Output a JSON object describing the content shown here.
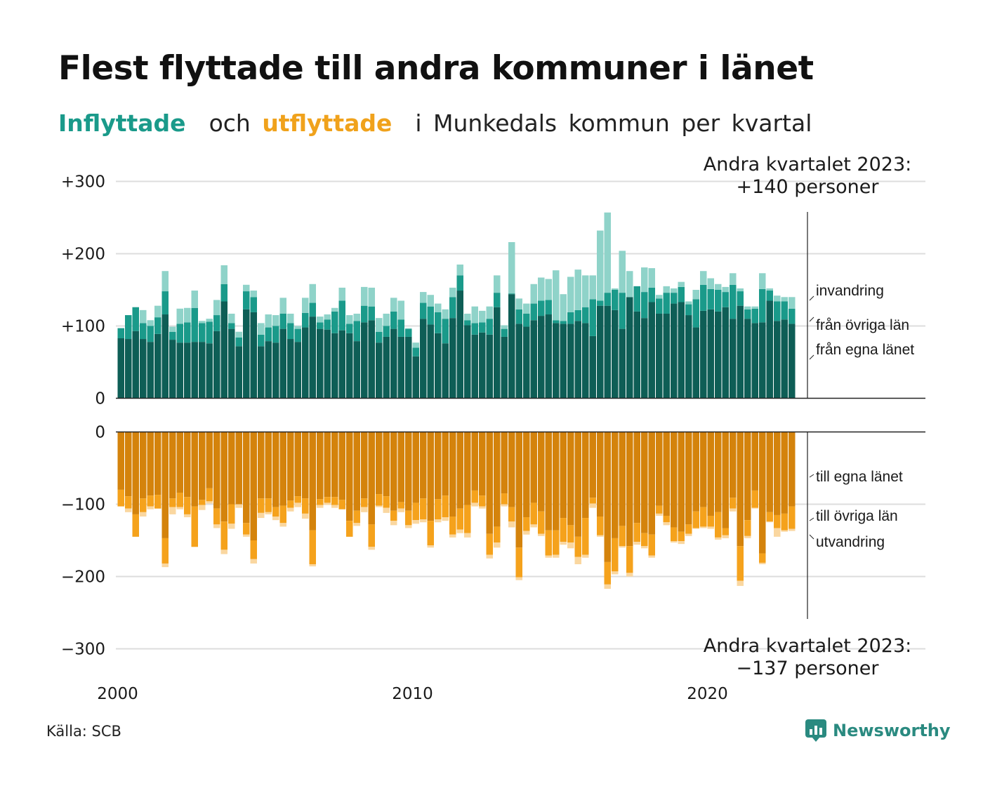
{
  "title": "Flest flyttade till andra kommuner i länet",
  "subtitle": {
    "in_word": "Inflyttade",
    "and_word": "och",
    "out_word": "utflyttade",
    "rest": "i Munkedals kommun per kvartal"
  },
  "annotations": {
    "top_line1": "Andra kvartalet 2023:",
    "top_line2": "+140 personer",
    "bottom_line1": "Andra kvartalet 2023:",
    "bottom_line2": "−137 personer"
  },
  "source": "Källa: SCB",
  "brand": "Newsworthy",
  "colors": {
    "in_own": "#0e5e56",
    "in_other": "#1a9a8a",
    "in_abroad": "#8fd3c9",
    "out_own": "#d4830c",
    "out_other": "#f5a21c",
    "out_abroad": "#fad7a0",
    "brand": "#2a8a80"
  },
  "chart_data": {
    "type": "bar",
    "stacked": true,
    "x_unit": "quarter",
    "first_quarter": "2000 Q1",
    "last_quarter": "2023 Q2",
    "x_ticks": [
      "2000",
      "2010",
      "2020"
    ],
    "y_ticks_in": [
      "+300",
      "+200",
      "+100",
      "0"
    ],
    "y_ticks_out": [
      "0",
      "−100",
      "−200",
      "−300"
    ],
    "ylim_in": [
      0,
      300
    ],
    "ylim_out": [
      -300,
      0
    ],
    "grid": true,
    "legend_in": [
      "invandring",
      "från övriga län",
      "från egna länet"
    ],
    "legend_out": [
      "till egna länet",
      "till övriga län",
      "utvandring"
    ],
    "in_total": [
      97,
      115,
      126,
      122,
      108,
      128,
      176,
      99,
      124,
      125,
      149,
      107,
      110,
      136,
      184,
      117,
      92,
      157,
      149,
      104,
      116,
      115,
      139,
      117,
      100,
      139,
      158,
      113,
      116,
      125,
      153,
      115,
      117,
      154,
      153,
      111,
      117,
      139,
      135,
      97,
      77,
      147,
      143,
      131,
      123,
      153,
      185,
      117,
      127,
      121,
      127,
      170,
      101,
      216,
      138,
      131,
      158,
      167,
      165,
      177,
      144,
      168,
      178,
      170,
      170,
      232,
      257,
      152,
      204,
      176,
      155,
      181,
      180,
      143,
      155,
      152,
      161,
      134,
      150,
      176,
      166,
      158,
      154,
      173,
      152,
      127,
      127,
      173,
      152,
      142,
      140,
      140
    ],
    "in_domestic": [
      97,
      115,
      126,
      104,
      100,
      112,
      148,
      92,
      103,
      105,
      125,
      104,
      106,
      115,
      158,
      104,
      84,
      148,
      140,
      88,
      98,
      100,
      117,
      104,
      96,
      118,
      132,
      105,
      109,
      120,
      135,
      103,
      107,
      128,
      127,
      92,
      100,
      120,
      109,
      96,
      70,
      132,
      127,
      119,
      110,
      140,
      170,
      108,
      104,
      105,
      110,
      146,
      96,
      145,
      123,
      117,
      131,
      135,
      136,
      108,
      107,
      119,
      122,
      126,
      137,
      135,
      146,
      150,
      146,
      140,
      155,
      147,
      153,
      138,
      146,
      146,
      154,
      130,
      137,
      157,
      151,
      150,
      147,
      157,
      148,
      123,
      124,
      151,
      149,
      134,
      134,
      124
    ],
    "in_own": [
      83,
      82,
      93,
      82,
      78,
      89,
      116,
      81,
      77,
      77,
      78,
      78,
      76,
      93,
      134,
      96,
      72,
      123,
      119,
      72,
      79,
      77,
      96,
      82,
      78,
      98,
      113,
      96,
      95,
      90,
      94,
      90,
      79,
      105,
      108,
      77,
      85,
      96,
      85,
      85,
      58,
      110,
      102,
      90,
      76,
      111,
      149,
      101,
      88,
      91,
      88,
      126,
      85,
      144,
      103,
      99,
      108,
      114,
      116,
      104,
      103,
      103,
      107,
      104,
      86,
      128,
      128,
      122,
      96,
      140,
      120,
      111,
      133,
      117,
      117,
      131,
      133,
      115,
      98,
      121,
      123,
      120,
      126,
      110,
      128,
      110,
      104,
      105,
      135,
      107,
      109,
      103
    ],
    "out_total": [
      -103,
      -111,
      -145,
      -117,
      -107,
      -106,
      -187,
      -114,
      -107,
      -118,
      -159,
      -108,
      -99,
      -133,
      -169,
      -134,
      -105,
      -145,
      -182,
      -119,
      -114,
      -122,
      -131,
      -110,
      -104,
      -120,
      -186,
      -105,
      -101,
      -105,
      -107,
      -145,
      -130,
      -111,
      -163,
      -104,
      -112,
      -129,
      -111,
      -133,
      -127,
      -125,
      -160,
      -125,
      -123,
      -146,
      -140,
      -146,
      -103,
      -106,
      -175,
      -160,
      -103,
      -132,
      -205,
      -142,
      -132,
      -144,
      -174,
      -174,
      -156,
      -161,
      -183,
      -174,
      -105,
      -145,
      -217,
      -197,
      -160,
      -200,
      -156,
      -161,
      -174,
      -116,
      -129,
      -153,
      -155,
      -144,
      -134,
      -133,
      -134,
      -149,
      -147,
      -110,
      -213,
      -147,
      -106,
      -183,
      -125,
      -145,
      -138,
      -137
    ],
    "out_domestic": [
      -103,
      -106,
      -145,
      -111,
      -103,
      -106,
      -182,
      -104,
      -104,
      -114,
      -159,
      -101,
      -96,
      -128,
      -163,
      -127,
      -100,
      -142,
      -176,
      -112,
      -111,
      -117,
      -126,
      -105,
      -98,
      -113,
      -183,
      -101,
      -98,
      -101,
      -107,
      -145,
      -126,
      -104,
      -159,
      -102,
      -105,
      -123,
      -106,
      -129,
      -122,
      -121,
      -157,
      -121,
      -118,
      -142,
      -135,
      -140,
      -98,
      -103,
      -170,
      -153,
      -100,
      -124,
      -201,
      -137,
      -128,
      -141,
      -171,
      -170,
      -152,
      -153,
      -173,
      -170,
      -99,
      -143,
      -211,
      -193,
      -158,
      -195,
      -152,
      -158,
      -171,
      -113,
      -125,
      -151,
      -151,
      -141,
      -133,
      -131,
      -131,
      -146,
      -143,
      -106,
      -206,
      -144,
      -105,
      -181,
      -124,
      -133,
      -136,
      -134
    ],
    "out_own": [
      -80,
      -89,
      -114,
      -92,
      -88,
      -87,
      -147,
      -92,
      -84,
      -90,
      -103,
      -94,
      -78,
      -106,
      -124,
      -100,
      -100,
      -126,
      -150,
      -92,
      -92,
      -104,
      -102,
      -95,
      -89,
      -92,
      -136,
      -93,
      -90,
      -90,
      -94,
      -123,
      -109,
      -92,
      -128,
      -86,
      -89,
      -109,
      -97,
      -109,
      -98,
      -92,
      -123,
      -93,
      -88,
      -117,
      -106,
      -101,
      -81,
      -88,
      -141,
      -131,
      -85,
      -104,
      -160,
      -118,
      -98,
      -110,
      -136,
      -136,
      -119,
      -129,
      -145,
      -119,
      -91,
      -117,
      -180,
      -147,
      -130,
      -158,
      -126,
      -140,
      -142,
      -102,
      -116,
      -132,
      -138,
      -128,
      -110,
      -104,
      -116,
      -111,
      -133,
      -91,
      -158,
      -122,
      -81,
      -168,
      -111,
      -115,
      -113,
      -103
    ]
  }
}
